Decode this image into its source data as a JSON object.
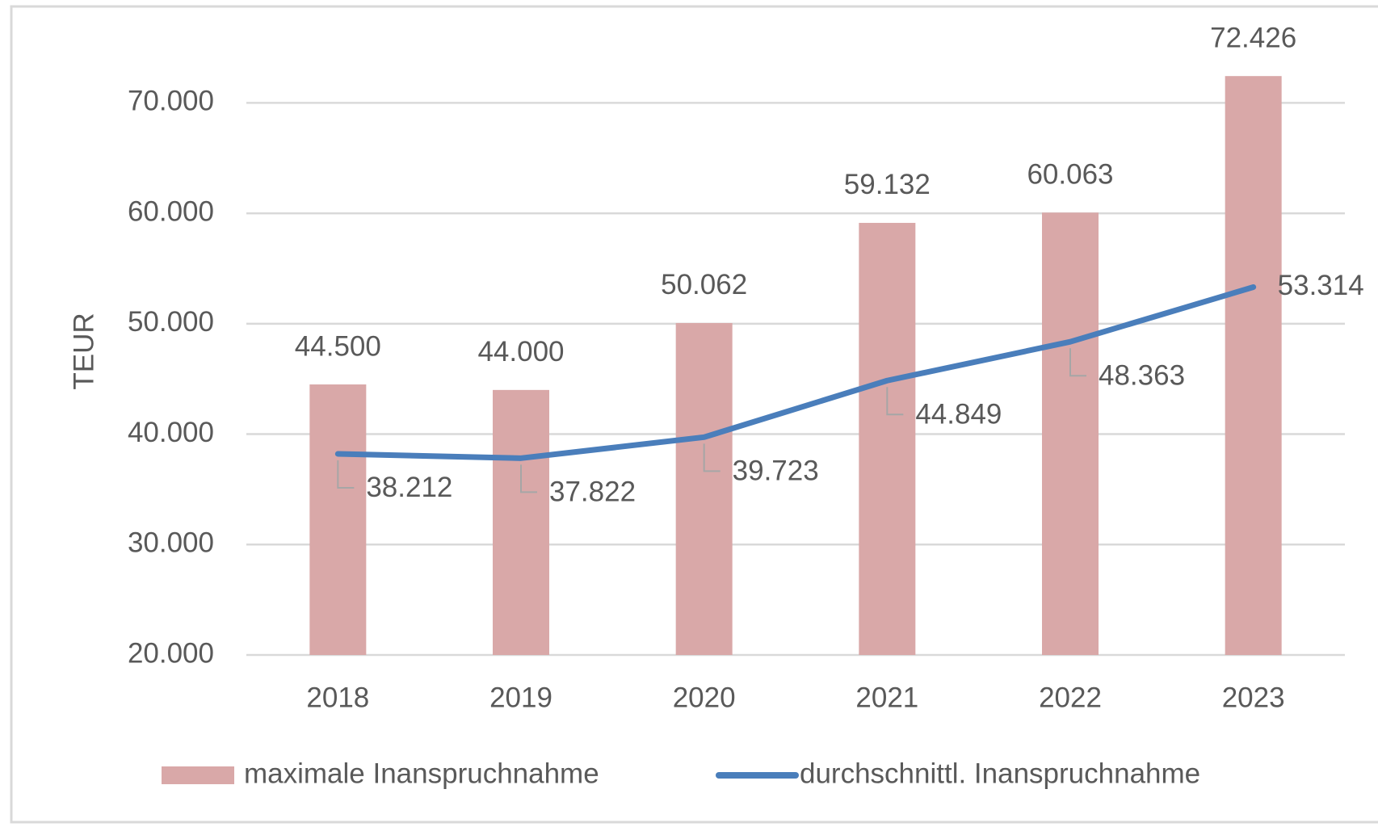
{
  "chart_data": {
    "type": "bar_line",
    "y_label": "TEUR",
    "categories": [
      "2018",
      "2019",
      "2020",
      "2021",
      "2022",
      "2023"
    ],
    "series": [
      {
        "name": "maximale Inanspruchnahme",
        "type": "bar",
        "color": "#d9a8a8",
        "values": [
          44500,
          44000,
          50062,
          59132,
          60063,
          72426
        ],
        "value_labels": [
          "44.500",
          "44.000",
          "50.062",
          "59.132",
          "60.063",
          "72.426"
        ]
      },
      {
        "name": "durchschnittl. Inanspruchnahme",
        "type": "line",
        "color": "#4a7ebb",
        "values": [
          38212,
          37822,
          39723,
          44849,
          48363,
          53314
        ],
        "value_labels": [
          "38.212",
          "37.822",
          "39.723",
          "44.849",
          "48.363",
          "53.314"
        ]
      }
    ],
    "ylim": [
      20000,
      75000
    ],
    "yticks": [
      {
        "value": 20000,
        "label": "20.000"
      },
      {
        "value": 30000,
        "label": "30.000"
      },
      {
        "value": 40000,
        "label": "40.000"
      },
      {
        "value": 50000,
        "label": "50.000"
      },
      {
        "value": 60000,
        "label": "60.000"
      },
      {
        "value": 70000,
        "label": "70.000"
      }
    ],
    "grid": true,
    "legend": "bottom"
  }
}
